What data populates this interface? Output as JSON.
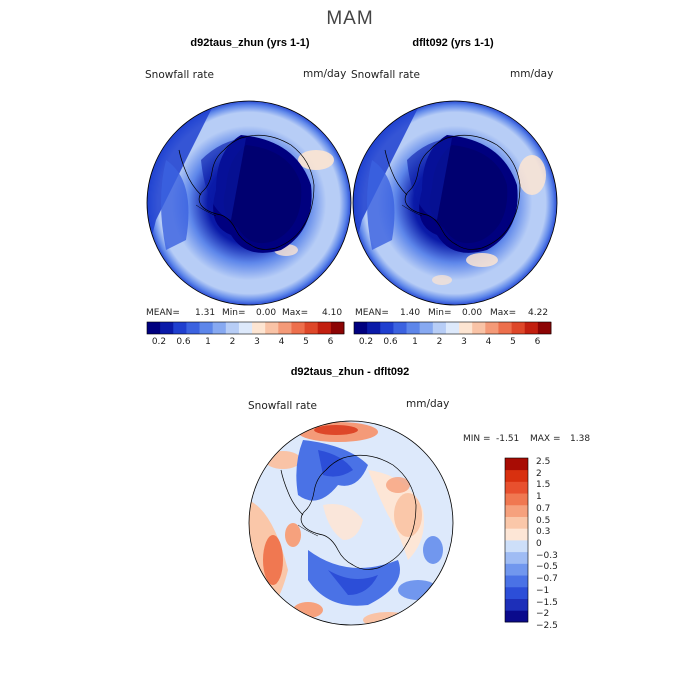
{
  "figure": {
    "season": "MAM"
  },
  "panel_a": {
    "title": "d92taus_zhun (yrs 1-1)",
    "variable": "Snowfall rate",
    "units": "mm/day",
    "mean_label": "MEAN=",
    "mean": "1.31",
    "min_label": "Min=",
    "min": "0.00",
    "max_label": "Max=",
    "max": "4.10"
  },
  "panel_b": {
    "title": "dflt092 (yrs 1-1)",
    "variable": "Snowfall rate",
    "units": "mm/day",
    "mean_label": "MEAN=",
    "mean": "1.40",
    "min_label": "Min=",
    "min": "0.00",
    "max_label": "Max=",
    "max": "4.22"
  },
  "panel_c": {
    "title": "d92taus_zhun - dflt092",
    "variable": "Snowfall rate",
    "units": "mm/day",
    "min_label": "MIN =",
    "min": "-1.51",
    "max_label": "MAX =",
    "max": "1.38"
  },
  "colorbar_abs": {
    "colors": [
      "#00007f",
      "#0a1aa8",
      "#1f3fcf",
      "#3b62e0",
      "#5d86ea",
      "#87a9f1",
      "#b7cdf6",
      "#dde9fb",
      "#fde5d2",
      "#f9c3a6",
      "#f49a78",
      "#ed6f4c",
      "#de4729",
      "#c21f0f",
      "#8c0404"
    ],
    "ticks": [
      "0.2",
      "0.6",
      "1",
      "2",
      "3",
      "4",
      "5",
      "6"
    ]
  },
  "colorbar_diff": {
    "colors": [
      "#0a0a8c",
      "#1d2fb9",
      "#2c4ed8",
      "#4a72e6",
      "#7197ee",
      "#9fbcf4",
      "#cddff9",
      "#fde6d6",
      "#fac7a9",
      "#f6a17d",
      "#f07851",
      "#e8502e",
      "#d8300f",
      "#a80c04"
    ],
    "ticks": [
      "2.5",
      "2",
      "1.5",
      "1",
      "0.7",
      "0.5",
      "0.3",
      "0",
      "−0.3",
      "−0.5",
      "−0.7",
      "−1",
      "−1.5",
      "−2",
      "−2.5"
    ]
  }
}
